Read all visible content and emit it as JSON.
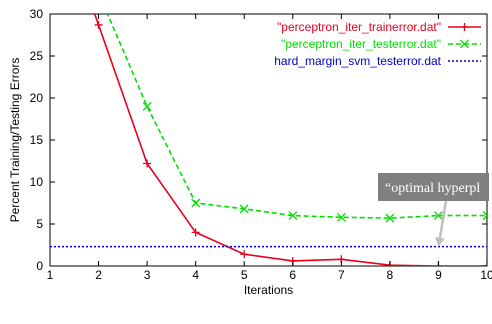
{
  "chart_data": {
    "type": "line",
    "title": "",
    "xlabel": "Iterations",
    "ylabel": "Percent Training/Testing Errors",
    "xlim": [
      1,
      10
    ],
    "ylim": [
      0,
      30
    ],
    "x_ticks": [
      "1",
      "2",
      "3",
      "4",
      "5",
      "6",
      "7",
      "8",
      "9",
      "10"
    ],
    "y_ticks": [
      "0",
      "5",
      "10",
      "15",
      "20",
      "25",
      "30"
    ],
    "grid": false,
    "legend_position": "top-right",
    "series": [
      {
        "name": "\"perceptron_iter_trainerror.dat\"",
        "color": "#e8001c",
        "style": "solid",
        "marker": "plus",
        "x": [
          1,
          2,
          3,
          4,
          5,
          6,
          7,
          8,
          9,
          10
        ],
        "y": [
          45,
          28.7,
          12.2,
          4.0,
          1.4,
          0.6,
          0.8,
          0.1,
          0.0,
          0.0
        ]
      },
      {
        "name": "\"perceptron_iter_testerror.dat\"",
        "color": "#00e000",
        "style": "dashed",
        "marker": "x",
        "x": [
          1,
          2,
          3,
          4,
          5,
          6,
          7,
          8,
          9,
          10
        ],
        "y": [
          45,
          32.5,
          19.0,
          7.5,
          6.8,
          6.0,
          5.8,
          5.7,
          6.0,
          6.0
        ]
      },
      {
        "name": "hard_margin_svm_testerror.dat",
        "color": "#0000cc",
        "style": "dotted",
        "marker": "none",
        "x": [
          1,
          10
        ],
        "y": [
          2.3,
          2.3
        ]
      }
    ],
    "annotation": {
      "text": "“optimal hyperpl",
      "arrow_target": [
        9,
        2.3
      ]
    }
  },
  "colors": {
    "axes": "#000000",
    "annotation_box": "#808080",
    "annotation_text": "#ffffff",
    "arrow": "#c0c0c0"
  }
}
